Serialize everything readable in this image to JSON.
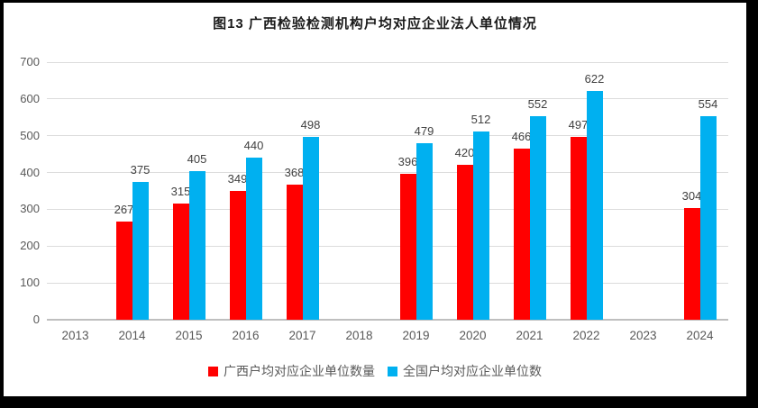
{
  "title": "图13 广西检验检测机构户均对应企业法人单位情况",
  "chart_data": {
    "type": "bar",
    "title": "图13 广西检验检测机构户均对应企业法人单位情况",
    "categories": [
      "2013",
      "2014",
      "2015",
      "2016",
      "2017",
      "2018",
      "2019",
      "2020",
      "2021",
      "2022",
      "2023",
      "2024"
    ],
    "series": [
      {
        "name": "广西户均对应企业单位数量",
        "color": "#ff0000",
        "values": [
          null,
          267,
          315,
          349,
          368,
          null,
          396,
          420,
          466,
          497,
          null,
          304
        ]
      },
      {
        "name": "全国户均对应企业单位数",
        "color": "#00b0f0",
        "values": [
          null,
          375,
          405,
          440,
          498,
          null,
          479,
          512,
          552,
          622,
          null,
          554
        ]
      }
    ],
    "xlabel": "",
    "ylabel": "",
    "ylim": [
      0,
      700
    ],
    "yticks": [
      0,
      100,
      200,
      300,
      400,
      500,
      600,
      700
    ],
    "grid": "horizontal",
    "data_labels": true,
    "legend_position": "bottom"
  },
  "colors": {
    "series_guangxi": "#ff0000",
    "series_national": "#00b0f0",
    "gridline": "#dcdcdc",
    "axis_line": "#bfbfbf",
    "tick_label": "#595959",
    "data_label": "#404040",
    "frame_border": "#000000"
  }
}
